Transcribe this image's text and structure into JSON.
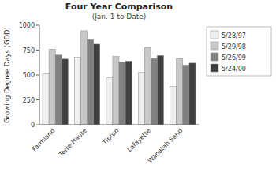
{
  "chart_data": {
    "type": "bar",
    "title": "Four Year Comparison",
    "subtitle": "(Jan. 1 to Date)",
    "y_label": "Growing Degree Days (GDD)",
    "categories": [
      "Farmland",
      "Terre Haute",
      "Tipton",
      "Lafayette",
      "Wanatah Sand"
    ],
    "series": [
      {
        "name": "5/28/97",
        "color": "#f0f0f0",
        "values": [
          510,
          680,
          470,
          525,
          385
        ]
      },
      {
        "name": "5/29/98",
        "color": "#c8c8c8",
        "values": [
          760,
          945,
          685,
          775,
          665
        ]
      },
      {
        "name": "5/26/99",
        "color": "#808080",
        "values": [
          700,
          855,
          630,
          665,
          600
        ]
      },
      {
        "name": "5/24/00",
        "color": "#404040",
        "values": [
          660,
          810,
          640,
          695,
          620
        ]
      }
    ],
    "ylim": [
      0,
      1000
    ],
    "yticks": [
      0,
      250,
      500,
      750,
      1000
    ],
    "grid": false,
    "legend": "upper right"
  }
}
